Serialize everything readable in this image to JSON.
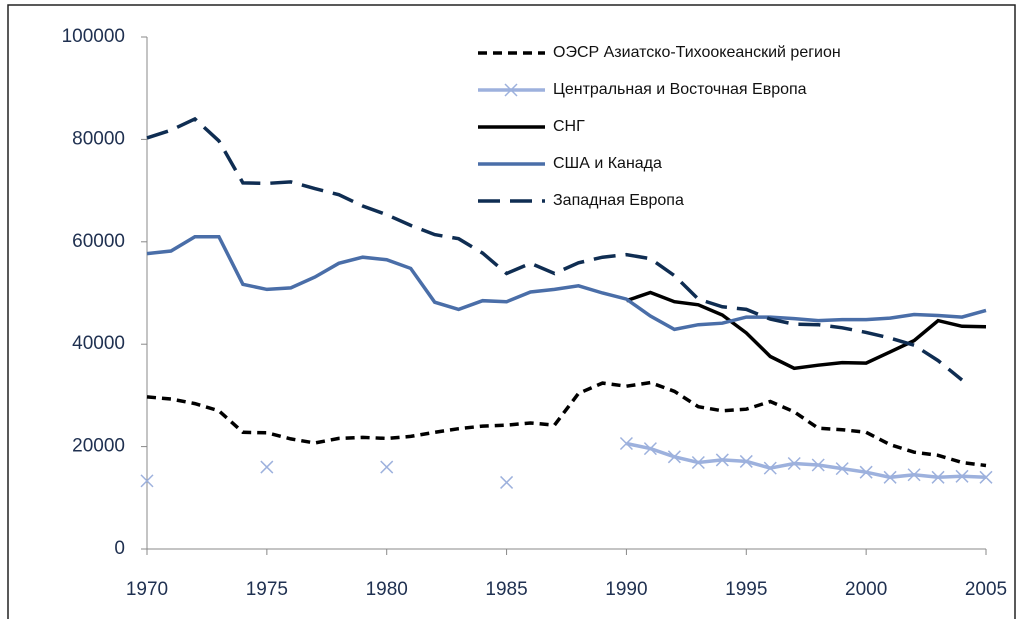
{
  "chart_data": {
    "type": "line",
    "x": [
      1970,
      1971,
      1972,
      1973,
      1974,
      1975,
      1976,
      1977,
      1978,
      1979,
      1980,
      1981,
      1982,
      1983,
      1984,
      1985,
      1986,
      1987,
      1988,
      1989,
      1990,
      1991,
      1992,
      1993,
      1994,
      1995,
      1996,
      1997,
      1998,
      1999,
      2000,
      2001,
      2002,
      2003,
      2004,
      2005
    ],
    "xlim": [
      1970,
      2005
    ],
    "xticks": [
      1970,
      1975,
      1980,
      1985,
      1990,
      1995,
      2000,
      2005
    ],
    "ylim": [
      0,
      100000
    ],
    "yticks": [
      0,
      20000,
      40000,
      60000,
      80000,
      100000
    ],
    "legend": "upper right",
    "series": [
      {
        "name": "ОЭСР Азиатско-Тихоокеанский  регион",
        "color": "#000000",
        "dash": "short",
        "values": [
          29700,
          29300,
          28400,
          27000,
          22800,
          22700,
          21500,
          20700,
          21600,
          21800,
          21600,
          22000,
          22800,
          23500,
          24000,
          24200,
          24600,
          24200,
          30400,
          32400,
          31800,
          32500,
          30800,
          27800,
          27000,
          27300,
          28800,
          26800,
          23600,
          23300,
          22800,
          20400,
          18900,
          18300,
          16900,
          16300
        ]
      },
      {
        "name": "Центральная и Восточная Европа",
        "color": "#9db1dd",
        "dash": "solid",
        "marker": "x",
        "values": [
          13300,
          null,
          null,
          null,
          null,
          16000,
          null,
          null,
          null,
          null,
          16000,
          null,
          null,
          null,
          null,
          13000,
          null,
          null,
          null,
          null,
          20600,
          19600,
          18000,
          16900,
          17400,
          17100,
          15800,
          16700,
          16400,
          15700,
          15000,
          14000,
          14500,
          14000,
          14200,
          14000
        ]
      },
      {
        "name": "СНГ",
        "color": "#000000",
        "dash": "solid",
        "values": [
          null,
          null,
          null,
          null,
          null,
          null,
          null,
          null,
          null,
          null,
          null,
          null,
          null,
          null,
          null,
          null,
          null,
          null,
          null,
          null,
          48500,
          50100,
          48300,
          47700,
          45700,
          42200,
          37600,
          35300,
          35900,
          36400,
          36300,
          38500,
          40700,
          44600,
          43500,
          43400
        ]
      },
      {
        "name": "США и Канада",
        "color": "#4a6ea8",
        "dash": "solid",
        "values": [
          57700,
          58200,
          61000,
          61000,
          51700,
          50700,
          51000,
          53100,
          55800,
          57000,
          56500,
          54800,
          48200,
          46800,
          48500,
          48300,
          50200,
          50700,
          51400,
          50000,
          48800,
          45500,
          42900,
          43800,
          44100,
          45300,
          45300,
          45000,
          44600,
          44800,
          44800,
          45100,
          45800,
          45600,
          45300,
          46600
        ]
      },
      {
        "name": "Западная Европа",
        "color": "#0f2d52",
        "dash": "long",
        "values": [
          80300,
          81800,
          84000,
          79700,
          71500,
          71400,
          71700,
          70400,
          69200,
          67000,
          65300,
          63200,
          61400,
          60600,
          57800,
          53800,
          55800,
          53800,
          55900,
          57000,
          57500,
          56700,
          53400,
          48800,
          47300,
          46800,
          44900,
          43900,
          43800,
          43200,
          42300,
          41200,
          39800,
          36800,
          33000,
          null
        ]
      }
    ]
  }
}
